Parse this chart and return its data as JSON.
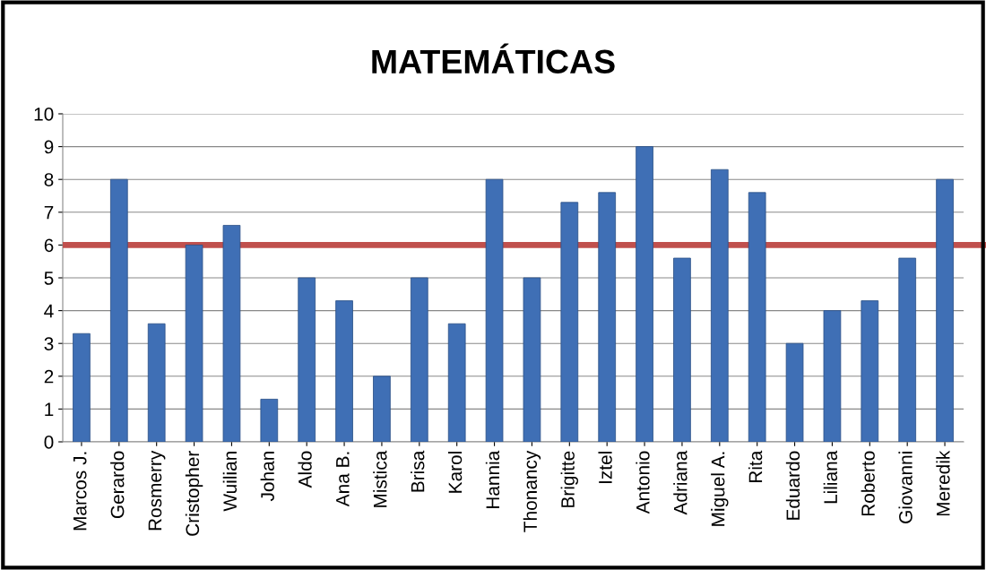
{
  "chart_data": {
    "type": "bar",
    "title": "MATEMÁTICAS",
    "categories": [
      "Marcos J.",
      "Gerardo",
      "Rosmerry",
      "Cristopher",
      "Wuilian",
      "Johan",
      "Aldo",
      "Ana B.",
      "Mistica",
      "Brisa",
      "Karol",
      "Hannia",
      "Thonancy",
      "Brigitte",
      "Iztel",
      "Antonio",
      "Adriana",
      "Miguel A.",
      "Rita",
      "Eduardo",
      "Liliana",
      "Roberto",
      "Giovanni",
      "Meredik"
    ],
    "values": [
      3.3,
      8,
      3.6,
      6,
      6.6,
      1.3,
      5,
      4.3,
      2,
      5,
      3.6,
      8,
      5,
      7.3,
      7.6,
      9,
      5.6,
      8.3,
      7.6,
      3,
      4,
      4.3,
      5.6,
      8
    ],
    "color": "#3f6fb5",
    "ylim": [
      0,
      10
    ],
    "yticks": [
      0,
      1,
      2,
      3,
      4,
      5,
      6,
      7,
      8,
      9,
      10
    ],
    "grid": "y",
    "ref_lines": [
      {
        "axis": "y",
        "value": 6,
        "color": "#c0504d"
      }
    ]
  }
}
